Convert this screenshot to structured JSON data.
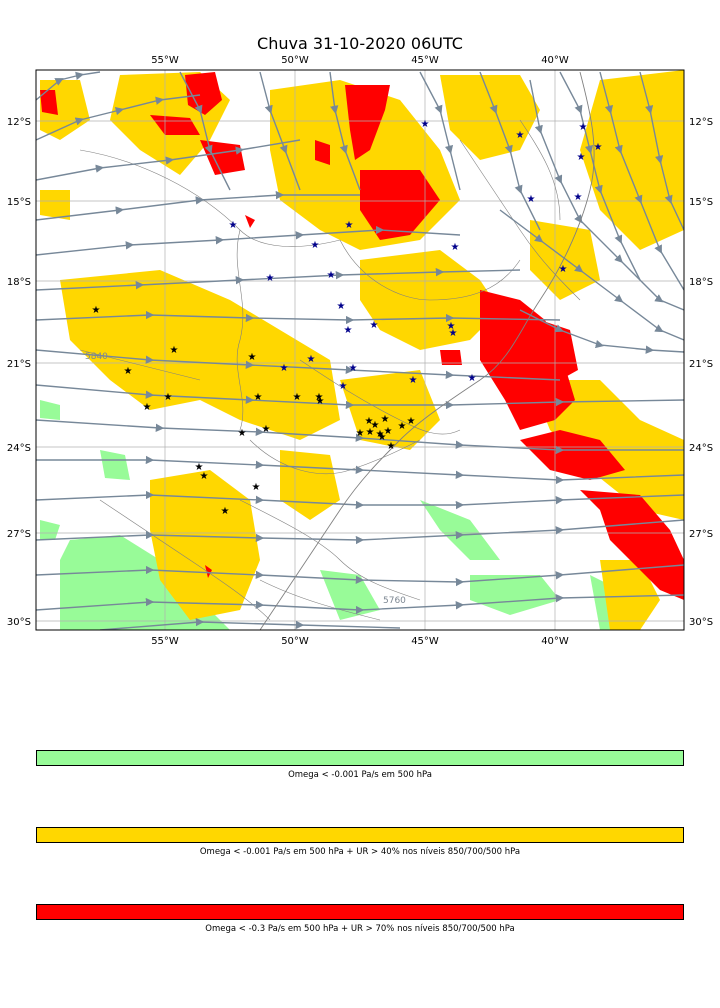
{
  "title": "Chuva 31-10-2020 06UTC",
  "axes": {
    "lon_ticks": [
      "55°W",
      "50°W",
      "45°W",
      "40°W"
    ],
    "lat_ticks": [
      "12°S",
      "15°S",
      "18°S",
      "21°S",
      "24°S",
      "27°S",
      "30°S"
    ]
  },
  "contour_labels": [
    "5840",
    "5760"
  ],
  "colors": {
    "omega_weak": "#98fb98",
    "omega_humid": "#ffd700",
    "omega_strong": "#ff0000",
    "streamlines": "#778899",
    "stars_obs": "#000000",
    "stars_other": "#00008b"
  },
  "legend": [
    {
      "color": "#98fb98",
      "label": "Omega < -0.001 Pa/s em 500 hPa"
    },
    {
      "color": "#ffd700",
      "label": "Omega < -0.001 Pa/s em 500 hPa + UR > 40% nos níveis 850/700/500 hPa"
    },
    {
      "color": "#ff0000",
      "label": "Omega < -0.3 Pa/s em 500 hPa + UR > 70% nos níveis 850/700/500 hPa"
    }
  ]
}
